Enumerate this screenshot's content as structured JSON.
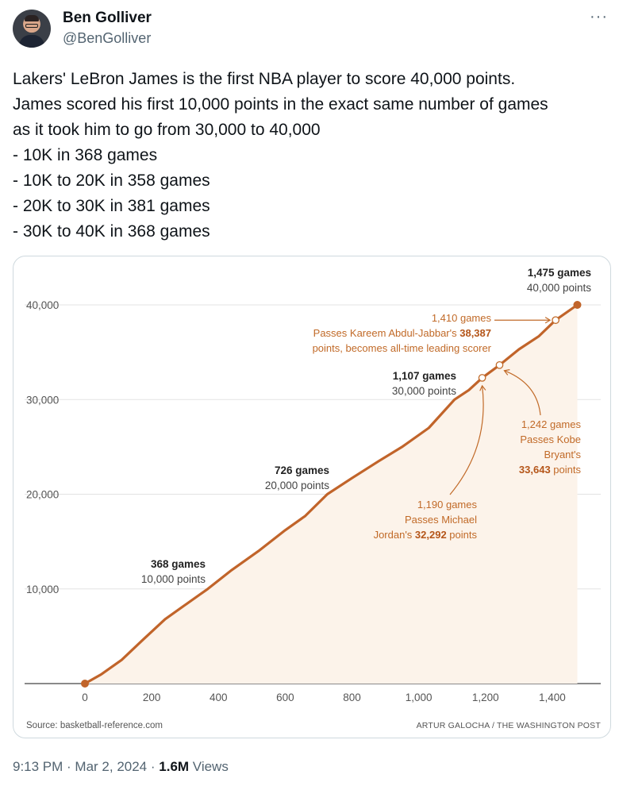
{
  "author": {
    "name": "Ben Golliver",
    "handle": "@BenGolliver"
  },
  "more_label": "···",
  "tweet_lines": [
    "Lakers' LeBron James is the first NBA player to score 40,000 points.",
    "James scored his first 10,000 points in the exact same number of games",
    "as it took him to go from 30,000 to 40,000",
    "- 10K in 368 games",
    "- 10K to 20K in 358 games",
    "- 20K to 30K in 381 games",
    "- 30K to 40K in 368 games"
  ],
  "footer": {
    "time": "9:13 PM",
    "sep1": " · ",
    "date": "Mar 2, 2024",
    "sep2": " · ",
    "views_count": "1.6M",
    "views_label": " Views"
  },
  "colors": {
    "line": "#c1642a",
    "fill": "#fcf3ea",
    "grid": "#e3e3e3",
    "annotation": "#c16a28"
  },
  "chart_data": {
    "type": "area",
    "xlim": [
      0,
      1500
    ],
    "ylim": [
      0,
      40000
    ],
    "x_ticks": [
      0,
      200,
      400,
      600,
      800,
      1000,
      1200,
      1400
    ],
    "x_tick_labels": [
      "0",
      "200",
      "400",
      "600",
      "800",
      "1,000",
      "1,200",
      "1,400"
    ],
    "y_ticks": [
      10000,
      20000,
      30000,
      40000
    ],
    "y_tick_labels": [
      "10,000",
      "20,000",
      "30,000",
      "40,000"
    ],
    "series": [
      {
        "x": [
          0,
          50,
          110,
          170,
          240,
          300,
          368,
          440,
          520,
          600,
          660,
          726,
          800,
          880,
          950,
          1030,
          1107,
          1150,
          1190,
          1242,
          1300,
          1360,
          1410,
          1475
        ],
        "y": [
          0,
          1000,
          2500,
          4500,
          6800,
          8300,
          10000,
          12000,
          14000,
          16200,
          17700,
          20000,
          21700,
          23500,
          25000,
          27000,
          30000,
          31000,
          32292,
          33643,
          35300,
          36700,
          38387,
          40000
        ]
      }
    ],
    "milestones": [
      {
        "games_label": "368 games",
        "points_label": "10,000 points"
      },
      {
        "games_label": "726 games",
        "points_label": "20,000 points"
      },
      {
        "games_label": "1,107 games",
        "points_label": "30,000 points"
      },
      {
        "games_label": "1,475 games",
        "points_label": "40,000 points"
      }
    ],
    "callouts": {
      "kareem": {
        "line1": "1,410 games",
        "line2_pre": "Passes Kareem Abdul-Jabbar's ",
        "line2_bold": "38,387",
        "line3": "points, becomes all-time leading scorer"
      },
      "kobe": {
        "line1": "1,242 games",
        "line2": "Passes Kobe",
        "line3": "Bryant's",
        "line4_bold": "33,643",
        "line4_post": " points"
      },
      "jordan": {
        "line1": "1,190 games",
        "line2": "Passes Michael",
        "line3_pre": "Jordan's ",
        "line3_bold": "32,292",
        "line3_post": " points"
      }
    },
    "source": "Source: basketball-reference.com",
    "credit": "ARTUR GALOCHA / THE WASHINGTON POST"
  }
}
